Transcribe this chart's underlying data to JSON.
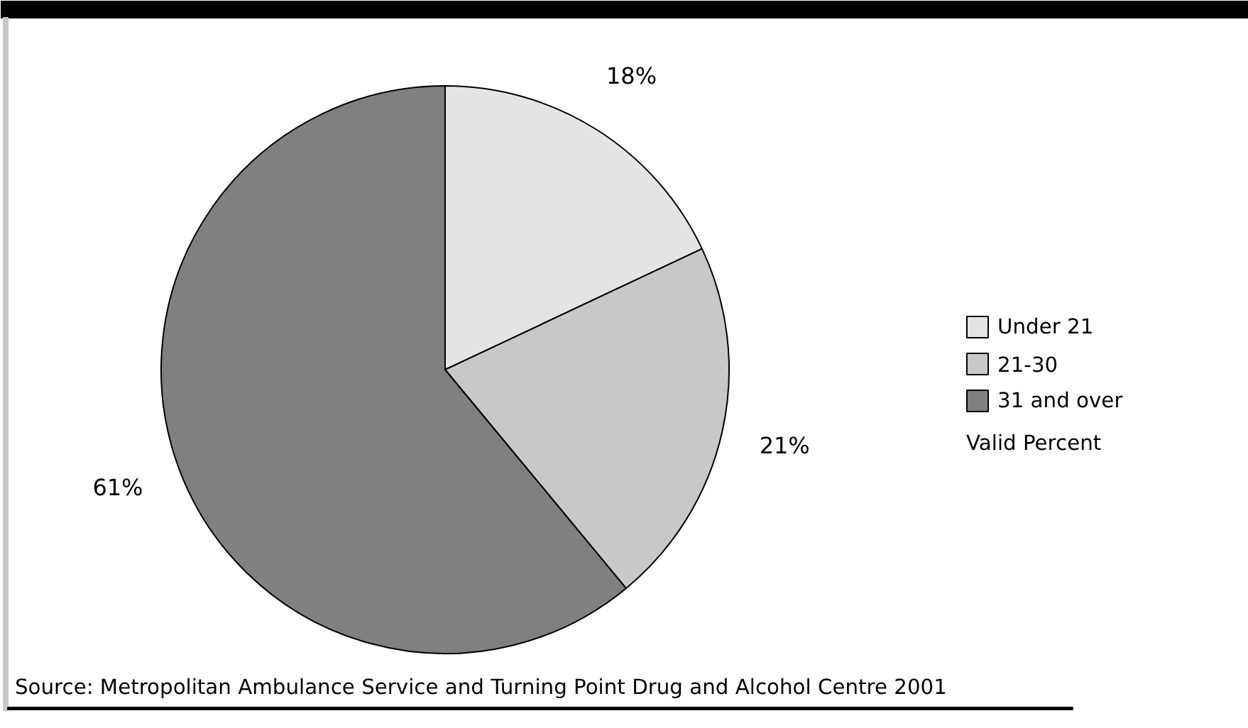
{
  "chart_data": {
    "type": "pie",
    "categories": [
      "Under 21",
      "21-30",
      "31 and over"
    ],
    "values": [
      18,
      21,
      61
    ],
    "colors": [
      "#e4e4e4",
      "#c8c8c8",
      "#808080"
    ],
    "value_labels": [
      "18%",
      "21%",
      "61%"
    ],
    "legend": "right",
    "legend_title": "Valid Percent",
    "annotations": [
      "Source: Metropolitan Ambulance Service and Turning Point Drug and Alcohol Centre 2001"
    ]
  }
}
